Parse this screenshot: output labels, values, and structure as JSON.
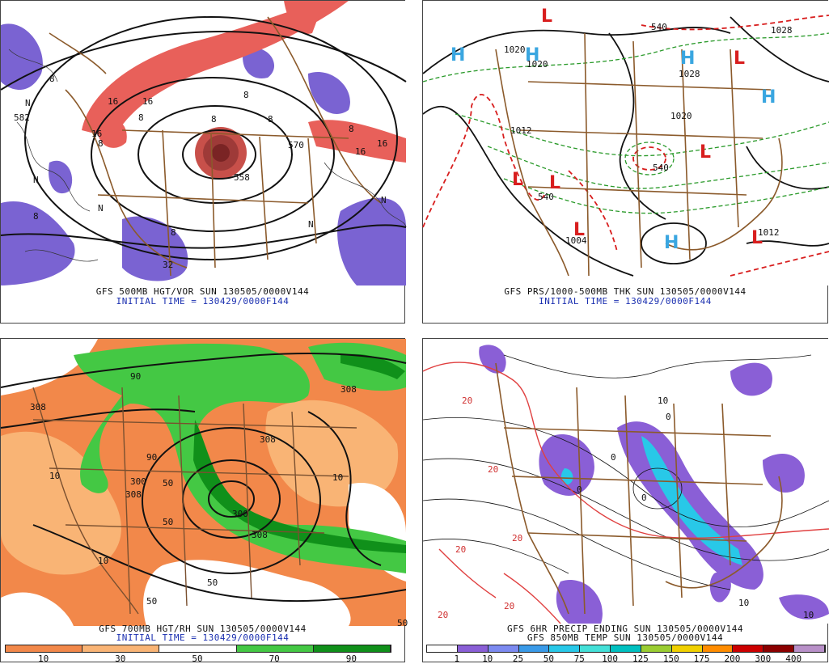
{
  "panels": {
    "p1": {
      "line1": "GFS 500MB HGT/VOR SUN 130505/0000V144",
      "line2": "INITIAL TIME = 130429/0000F144",
      "labels": [
        "582",
        "570",
        "558",
        "16",
        "16",
        "16",
        "8",
        "8",
        "8",
        "8",
        "8",
        "8",
        "8",
        "8",
        "N",
        "N",
        "N",
        "N",
        "N",
        "16",
        "32",
        "16",
        "8"
      ]
    },
    "p2": {
      "line1": "GFS PRS/1000-500MB THK SUN 130505/0000V144",
      "line2": "INITIAL TIME = 130429/0000F144",
      "labels": [
        "1020",
        "1020",
        "1028",
        "1028",
        "1020",
        "1012",
        "1004",
        "1012",
        "540",
        "540",
        "540"
      ]
    },
    "p3": {
      "line1": "GFS 700MB HGT/RH SUN 130505/0000V144",
      "line2": "INITIAL TIME = 130429/0000F144",
      "labels": [
        "308",
        "308",
        "300",
        "300",
        "308",
        "308",
        "90",
        "90",
        "50",
        "50",
        "50",
        "50",
        "10",
        "10",
        "10",
        "50",
        "308"
      ]
    },
    "p4": {
      "line1": "GFS 6HR PRECIP ENDING SUN 130505/0000V144",
      "line2": "GFS 850MB TEMP SUN 130505/0000V144",
      "labels": [
        "20",
        "20",
        "20",
        "20",
        "20",
        "20",
        "10",
        "10",
        "0",
        "0",
        "0",
        "0",
        "10"
      ]
    }
  },
  "colorbar_rh": {
    "ticks": [
      "10",
      "30",
      "50",
      "70",
      "90"
    ],
    "colors": [
      "#f2884a",
      "#f9b475",
      "#ffffff",
      "#44c844",
      "#10901a"
    ]
  },
  "colorbar_precip": {
    "ticks": [
      "1",
      "10",
      "25",
      "50",
      "75",
      "100",
      "125",
      "150",
      "175",
      "200",
      "300",
      "400"
    ],
    "colors": [
      "#ffffff",
      "#8a5fd6",
      "#7c8af0",
      "#3a9ae8",
      "#28c8e8",
      "#44e0d8",
      "#00c0c0",
      "#9acd32",
      "#f0d000",
      "#ff8c00",
      "#cc0000",
      "#8b0000",
      "#b890c8"
    ]
  }
}
